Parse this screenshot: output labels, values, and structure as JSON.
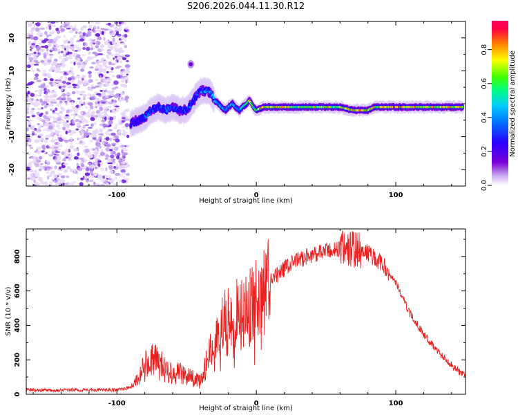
{
  "title": "S206.2026.044.11.30.R12",
  "colors": {
    "snr_line": "#e8201e",
    "noise": "#6a1fd8",
    "colormap": [
      "#ffffff",
      "#7a00d8",
      "#2a00ff",
      "#00c8ff",
      "#00ff40",
      "#ffff00",
      "#ff8000",
      "#ff0040"
    ]
  },
  "chart_data": [
    {
      "type": "heatmap",
      "name": "spectrogram",
      "xlabel": "Height of straight line (km)",
      "ylabel": "Frequency (Hz)",
      "xlim": [
        -165,
        150
      ],
      "ylim": [
        -25,
        25
      ],
      "xticks": [
        -100,
        0,
        100
      ],
      "yticks": [
        -20,
        -10,
        0,
        10,
        20
      ],
      "noise_region_x": [
        -165,
        -92
      ],
      "ridge": {
        "x": [
          -90,
          -85,
          -80,
          -75,
          -70,
          -65,
          -60,
          -55,
          -50,
          -45,
          -42,
          -40,
          -37,
          -35,
          -32,
          -30,
          -27,
          -25,
          -22,
          -20,
          -17,
          -15,
          -12,
          -10,
          -7,
          -5,
          -2,
          0,
          5,
          10,
          20,
          30,
          40,
          50,
          60,
          70,
          80,
          85,
          90,
          95,
          100,
          110,
          120,
          130,
          140,
          148
        ],
        "y": [
          -6,
          -5,
          -4,
          -2,
          -1,
          -2,
          -1,
          -2,
          -2,
          1,
          3,
          4,
          4,
          4,
          3,
          1,
          0,
          -1,
          -2,
          -1,
          0,
          -1,
          -2,
          -1,
          0,
          1,
          -1,
          -2,
          -1,
          -1,
          -1,
          -1,
          -1,
          -1,
          -1,
          -2,
          -2,
          -1,
          -1,
          -1,
          -1,
          -1,
          -1,
          -1,
          -1,
          -1
        ],
        "amplitude": [
          0.3,
          0.3,
          0.35,
          0.4,
          0.35,
          0.35,
          0.4,
          0.35,
          0.4,
          0.35,
          0.4,
          0.4,
          0.5,
          0.45,
          0.5,
          0.5,
          0.5,
          0.45,
          0.5,
          0.55,
          0.5,
          0.55,
          0.5,
          0.55,
          0.6,
          0.8,
          0.65,
          0.7,
          0.85,
          0.75,
          0.95,
          0.7,
          0.75,
          0.8,
          0.75,
          0.9,
          0.95,
          0.85,
          0.8,
          0.9,
          0.95,
          0.8,
          0.85,
          0.8,
          0.85,
          0.8
        ]
      }
    },
    {
      "type": "line",
      "name": "snr",
      "xlabel": "Height of straight line (km)",
      "ylabel": "SNR (10 * v/v)",
      "xlim": [
        -165,
        150
      ],
      "ylim": [
        0,
        960
      ],
      "xticks": [
        -100,
        0,
        100
      ],
      "yticks": [
        0,
        200,
        400,
        600,
        800
      ],
      "x": [
        -165,
        -140,
        -120,
        -100,
        -90,
        -85,
        -80,
        -75,
        -70,
        -65,
        -60,
        -55,
        -50,
        -45,
        -40,
        -35,
        -30,
        -25,
        -20,
        -15,
        -10,
        -5,
        0,
        10,
        20,
        30,
        40,
        50,
        60,
        65,
        70,
        80,
        90,
        100,
        110,
        120,
        130,
        140,
        150
      ],
      "y": [
        25,
        25,
        25,
        25,
        40,
        90,
        160,
        200,
        180,
        140,
        130,
        120,
        110,
        90,
        70,
        200,
        330,
        400,
        440,
        460,
        480,
        500,
        560,
        650,
        730,
        780,
        810,
        830,
        845,
        850,
        840,
        820,
        760,
        650,
        470,
        350,
        250,
        170,
        100
      ]
    },
    {
      "type": "colorbar",
      "name": "colorbar",
      "label": "Normalized spectral amplitude",
      "range": [
        0,
        0.97
      ],
      "ticks": [
        "0.0",
        "0.2",
        "0.4",
        "0.6",
        "0.8"
      ]
    }
  ]
}
